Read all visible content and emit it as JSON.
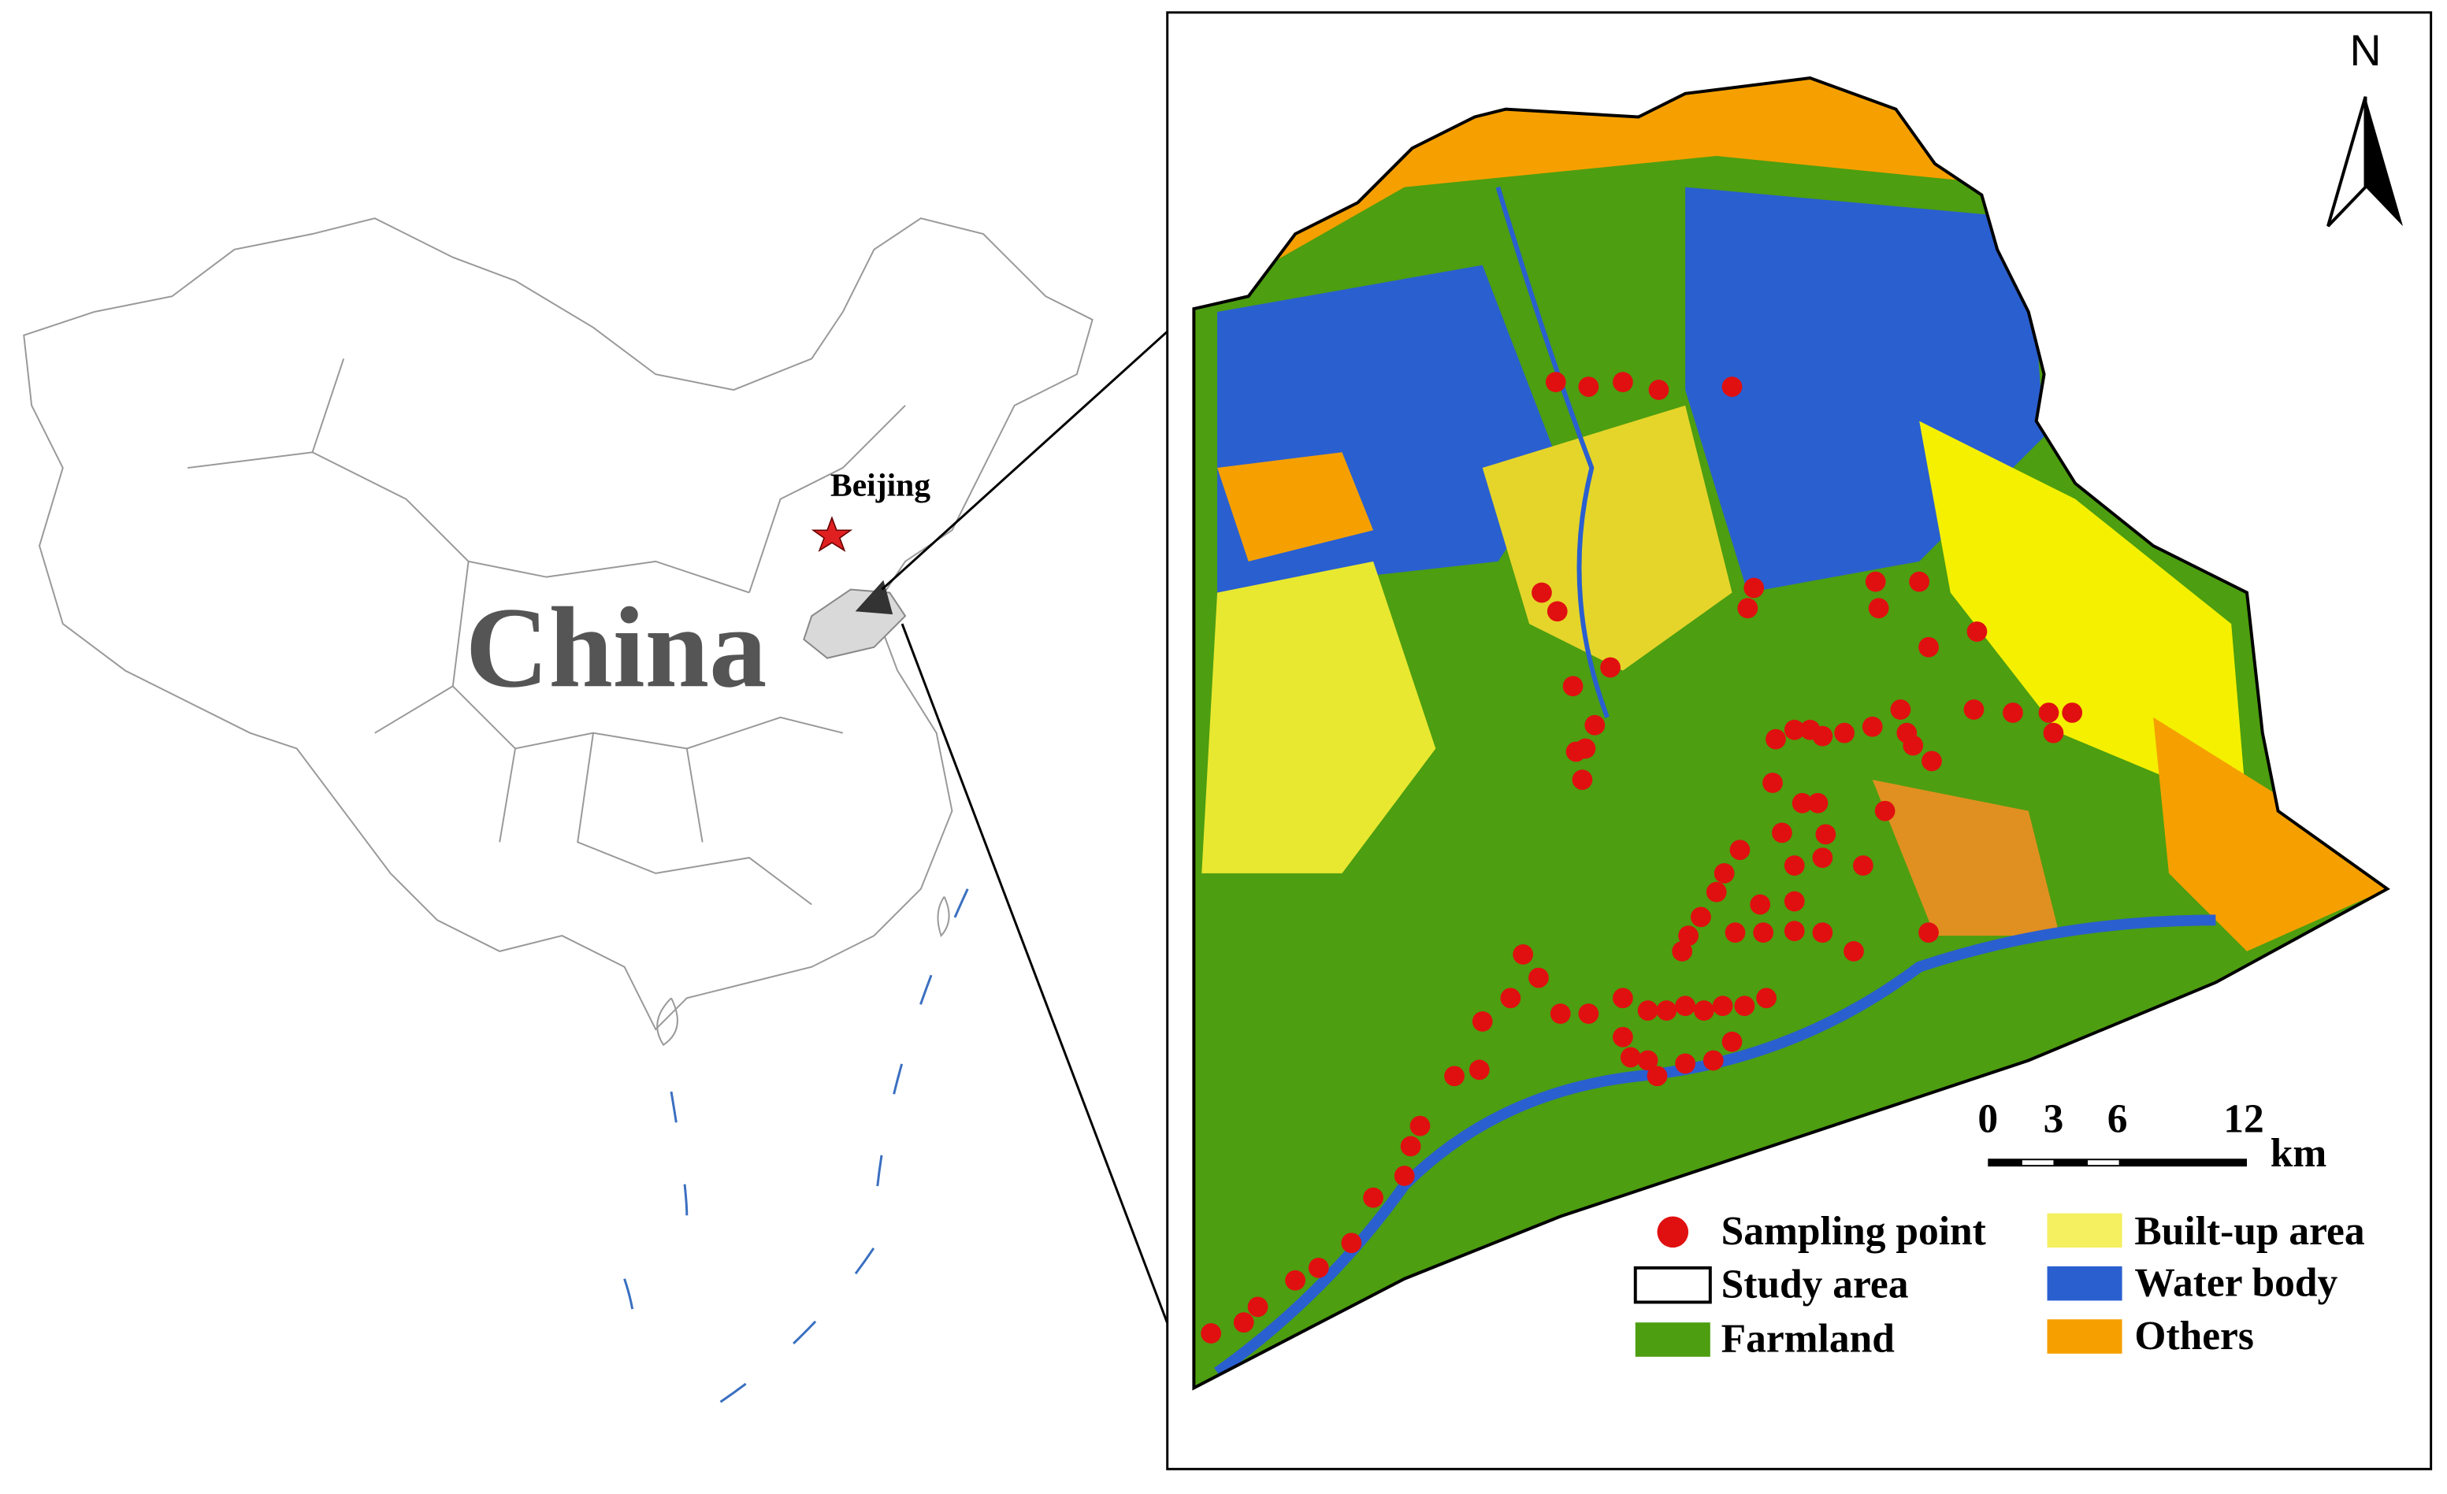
{
  "inset": {
    "city": "Beijing",
    "country": "China"
  },
  "map": {
    "north": "N",
    "scale_bar": {
      "labels": [
        "0",
        "3",
        "6",
        "12"
      ],
      "unit": "km"
    },
    "legend": [
      "Sampling point",
      "Study area",
      "Farmland",
      "Built-up area",
      "Water body",
      "Others"
    ]
  }
}
